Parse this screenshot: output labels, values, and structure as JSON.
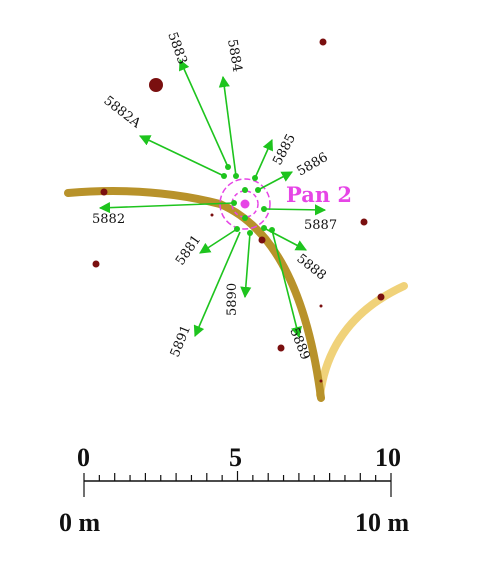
{
  "map": {
    "center_label": "Pan 2",
    "colors": {
      "arrow": "#1ec41e",
      "center": "#e645e6",
      "trench_dark": "#b8922a",
      "trench_light": "#f0d27a",
      "point": "#7a0f0f"
    },
    "arrow_labels": {
      "a5883": "5883",
      "a5884": "5884",
      "a5882A": "5882A",
      "a5885": "5885",
      "a5886": "5886",
      "a5882": "5882",
      "a5887": "5887",
      "a5881": "5881",
      "a5888": "5888",
      "a5890": "5890",
      "a5891": "5891",
      "a5889": "5889"
    }
  },
  "scale": {
    "tick_labels": [
      "0",
      "5",
      "10"
    ],
    "unit_left": "0 m",
    "unit_right": "10 m"
  }
}
